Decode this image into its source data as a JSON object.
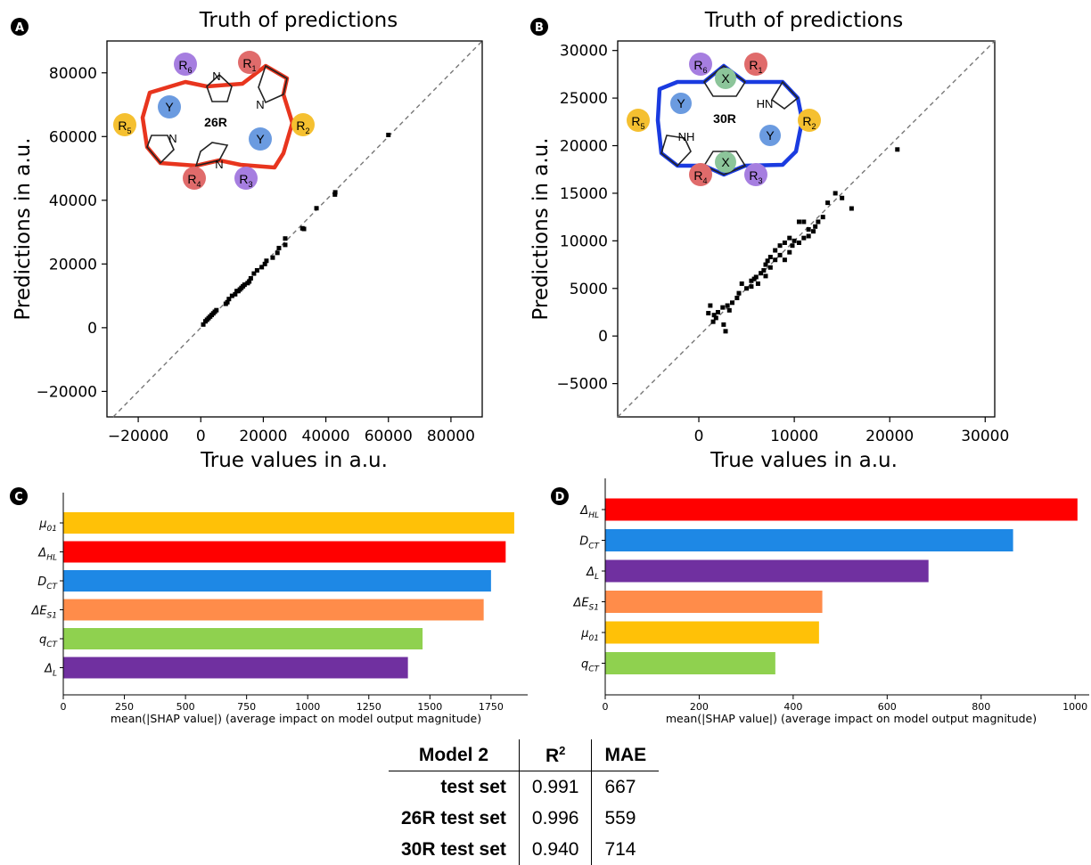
{
  "panels": {
    "A": "A",
    "B": "B",
    "C": "C",
    "D": "D"
  },
  "chart_data": [
    {
      "id": "A",
      "type": "scatter",
      "title": "Truth of predictions",
      "xlabel": "True values in a.u.",
      "ylabel": "Predictions in a.u.",
      "xlim": [
        -30000,
        90000
      ],
      "ylim": [
        -28000,
        90000
      ],
      "xticks": [
        -20000,
        0,
        20000,
        40000,
        60000,
        80000
      ],
      "yticks": [
        -20000,
        0,
        20000,
        40000,
        60000,
        80000
      ],
      "xtick_labels": [
        "−20000",
        "0",
        "20000",
        "40000",
        "60000",
        "80000"
      ],
      "ytick_labels": [
        "−20000",
        "0",
        "20000",
        "40000",
        "60000",
        "80000"
      ],
      "diagonal": true,
      "molecule": "26R",
      "points": [
        [
          60000,
          60500
        ],
        [
          43000,
          42500
        ],
        [
          42900,
          41800
        ],
        [
          37000,
          37500
        ],
        [
          33000,
          31000
        ],
        [
          32500,
          31200
        ],
        [
          27000,
          28000
        ],
        [
          27000,
          26000
        ],
        [
          25000,
          25000
        ],
        [
          24500,
          23500
        ],
        [
          23000,
          22000
        ],
        [
          21000,
          21000
        ],
        [
          20500,
          20000
        ],
        [
          19500,
          19000
        ],
        [
          18000,
          18000
        ],
        [
          17000,
          17000
        ],
        [
          16000,
          15500
        ],
        [
          15500,
          14500
        ],
        [
          15000,
          14000
        ],
        [
          14000,
          13500
        ],
        [
          13500,
          13000
        ],
        [
          13000,
          12500
        ],
        [
          12500,
          12000
        ],
        [
          12000,
          11500
        ],
        [
          11500,
          11500
        ],
        [
          11000,
          10500
        ],
        [
          10000,
          10000
        ],
        [
          9000,
          9000
        ],
        [
          8500,
          8000
        ],
        [
          8000,
          7500
        ],
        [
          5000,
          5500
        ],
        [
          4500,
          5000
        ],
        [
          4000,
          4500
        ],
        [
          3500,
          4000
        ],
        [
          3000,
          3500
        ],
        [
          2500,
          3000
        ],
        [
          2000,
          2500
        ],
        [
          1500,
          2000
        ],
        [
          800,
          1000
        ]
      ]
    },
    {
      "id": "B",
      "type": "scatter",
      "title": "Truth of predictions",
      "xlabel": "True values in a.u.",
      "ylabel": "Predictions in a.u.",
      "xlim": [
        -8500,
        31000
      ],
      "ylim": [
        -8500,
        31000
      ],
      "xticks": [
        0,
        10000,
        20000,
        30000
      ],
      "yticks": [
        -5000,
        0,
        5000,
        10000,
        15000,
        20000,
        25000,
        30000
      ],
      "xtick_labels": [
        "0",
        "10000",
        "20000",
        "30000"
      ],
      "ytick_labels": [
        "−5000",
        "0",
        "5000",
        "10000",
        "15000",
        "20000",
        "25000",
        "30000"
      ],
      "diagonal": true,
      "molecule": "30R",
      "points": [
        [
          20800,
          19600
        ],
        [
          14300,
          15000
        ],
        [
          15000,
          14500
        ],
        [
          16000,
          13400
        ],
        [
          13500,
          14000
        ],
        [
          13000,
          12500
        ],
        [
          12500,
          12000
        ],
        [
          12200,
          11500
        ],
        [
          12000,
          11000
        ],
        [
          11500,
          11200
        ],
        [
          11000,
          12000
        ],
        [
          10500,
          12000
        ],
        [
          11500,
          10500
        ],
        [
          11000,
          10300
        ],
        [
          10500,
          9800
        ],
        [
          10000,
          10000
        ],
        [
          9800,
          9500
        ],
        [
          9500,
          10300
        ],
        [
          9000,
          9800
        ],
        [
          9500,
          8800
        ],
        [
          8500,
          9500
        ],
        [
          8000,
          9000
        ],
        [
          8500,
          8500
        ],
        [
          9000,
          8000
        ],
        [
          8000,
          8000
        ],
        [
          7500,
          8300
        ],
        [
          7200,
          7900
        ],
        [
          7000,
          7500
        ],
        [
          7500,
          7200
        ],
        [
          6800,
          6900
        ],
        [
          6500,
          6600
        ],
        [
          7000,
          6300
        ],
        [
          6000,
          6200
        ],
        [
          5800,
          6000
        ],
        [
          5500,
          5800
        ],
        [
          6200,
          5500
        ],
        [
          5500,
          5200
        ],
        [
          5000,
          5000
        ],
        [
          4500,
          5500
        ],
        [
          4200,
          4500
        ],
        [
          4000,
          4000
        ],
        [
          3500,
          3500
        ],
        [
          3000,
          3200
        ],
        [
          3200,
          2700
        ],
        [
          2500,
          3000
        ],
        [
          2000,
          2500
        ],
        [
          1600,
          2200
        ],
        [
          1200,
          3200
        ],
        [
          1000,
          2400
        ],
        [
          1800,
          1900
        ],
        [
          1500,
          1500
        ],
        [
          2600,
          1200
        ],
        [
          2800,
          500
        ]
      ]
    },
    {
      "id": "C",
      "type": "bar",
      "orientation": "horizontal",
      "xlabel": "mean(|SHAP value|) (average impact on model output magnitude)",
      "xlim": [
        0,
        1900
      ],
      "xticks": [
        0,
        250,
        500,
        750,
        1000,
        1250,
        1500,
        1750
      ],
      "categories": [
        "μ01",
        "ΔHL",
        "DCT",
        "ΔES1",
        "qCT",
        "ΔL"
      ],
      "values": [
        1845,
        1810,
        1750,
        1720,
        1470,
        1410
      ],
      "colors": [
        "#ffc107",
        "#ff0000",
        "#1e88e5",
        "#ff8c4a",
        "#8fd14f",
        "#7030a0"
      ]
    },
    {
      "id": "D",
      "type": "bar",
      "orientation": "horizontal",
      "xlabel": "mean(|SHAP value|) (average impact on model output magnitude)",
      "xlim": [
        0,
        1030
      ],
      "xticks": [
        0,
        200,
        400,
        600,
        800,
        1000
      ],
      "categories": [
        "ΔHL",
        "DCT",
        "ΔL",
        "ΔES1",
        "μ01",
        "qCT"
      ],
      "values": [
        1005,
        868,
        688,
        462,
        455,
        362
      ],
      "colors": [
        "#ff0000",
        "#1e88e5",
        "#7030a0",
        "#ff8c4a",
        "#ffc107",
        "#8fd14f"
      ]
    }
  ],
  "molecules": {
    "A": {
      "label": "26R",
      "N": "N",
      "Y": "Y",
      "R1": "R",
      "R1sub": "1",
      "R2": "R",
      "R2sub": "2",
      "R3": "R",
      "R3sub": "3",
      "R4": "R",
      "R4sub": "4",
      "R5": "R",
      "R5sub": "5",
      "R6": "R",
      "R6sub": "6"
    },
    "B": {
      "label": "30R",
      "X": "X",
      "Y": "Y",
      "NH": "NH",
      "HN": "HN",
      "R1": "R",
      "R1sub": "1",
      "R2": "R",
      "R2sub": "2",
      "R3": "R",
      "R3sub": "3",
      "R4": "R",
      "R4sub": "4",
      "R5": "R",
      "R5sub": "5",
      "R6": "R",
      "R6sub": "6"
    }
  },
  "table": {
    "header": [
      "Model 2",
      "R",
      "MAE"
    ],
    "header_sup": "2",
    "rows": [
      {
        "label": "test set",
        "r2": "0.991",
        "mae": "667"
      },
      {
        "label": "26R test set",
        "r2": "0.996",
        "mae": "559"
      },
      {
        "label": "30R test set",
        "r2": "0.940",
        "mae": "714"
      }
    ]
  }
}
